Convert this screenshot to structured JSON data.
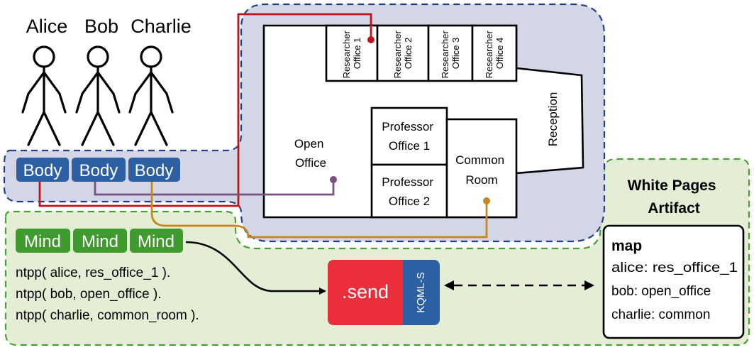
{
  "people": [
    "Alice",
    "Bob",
    "Charlie"
  ],
  "body_label": "Body",
  "mind_label": "Mind",
  "rooms": {
    "researcher1": [
      "Researcher",
      "Office 1"
    ],
    "researcher2": [
      "Researcher",
      "Office 2"
    ],
    "researcher3": [
      "Researcher",
      "Office 3"
    ],
    "researcher4": [
      "Researcher",
      "Office 4"
    ],
    "professor1": [
      "Professor",
      "Office 1"
    ],
    "professor2": [
      "Professor",
      "Office 2"
    ],
    "common": [
      "Common",
      "Room"
    ],
    "open": [
      "Open",
      "Office"
    ],
    "reception": "Reception"
  },
  "beliefs": [
    "ntpp( alice, res_office_1 ).",
    "ntpp( bob, open_office ).",
    "ntpp( charlie, common_room )."
  ],
  "send_label": ".send",
  "protocol_label": "KQML-S",
  "artifact": {
    "title": [
      "White Pages",
      "Artifact"
    ],
    "map_heading": "map",
    "entries": [
      "alice: res_office_1",
      "bob: open_office",
      "charlie: common"
    ]
  },
  "colors": {
    "body_blue": "#2d5fa3",
    "mind_green": "#3f9b2e",
    "send_red": "#ea2f3a",
    "alice_line": "#c0141b",
    "bob_line": "#7a4f82",
    "charlie_line": "#c7861e",
    "env_fill": "#d2d6e6",
    "env_border": "#243f8a",
    "agent_fill": "#e4eed4",
    "agent_border": "#48a032"
  }
}
